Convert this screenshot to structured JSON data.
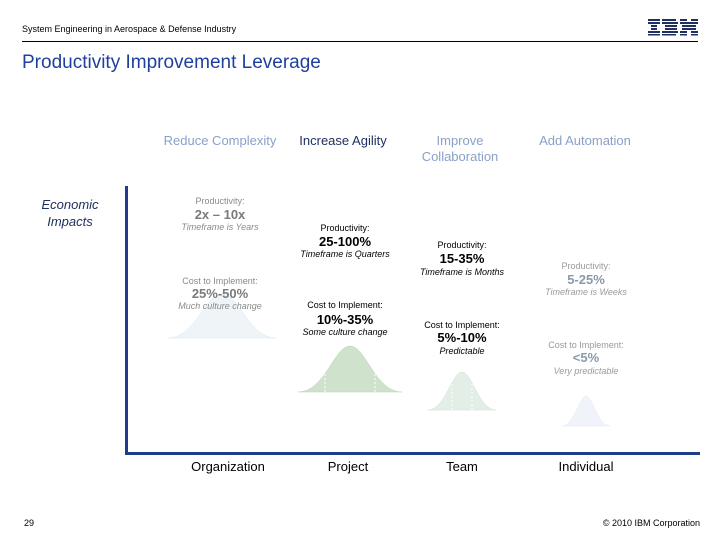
{
  "header": {
    "text": "System Engineering in Aerospace & Defense Industry",
    "title": "Productivity Improvement Leverage",
    "logo_text": "IBM"
  },
  "row_label": "Economic Impacts",
  "columns": [
    {
      "heading": "Reduce Complexity",
      "productivity_label": "Productivity:",
      "productivity_value": "2x – 10x",
      "productivity_timeframe": "Timeframe is Years",
      "cost_label": "Cost to Implement:",
      "cost_value": "25%-50%",
      "cost_note": "Much culture change",
      "bottom_label": "Organization"
    },
    {
      "heading": "Increase Agility",
      "productivity_label": "Productivity:",
      "productivity_value": "25-100%",
      "productivity_timeframe": "Timeframe is Quarters",
      "cost_label": "Cost to Implement:",
      "cost_value": "10%-35%",
      "cost_note": "Some culture change",
      "bottom_label": "Project"
    },
    {
      "heading": "Improve Collaboration",
      "productivity_label": "Productivity:",
      "productivity_value": "15-35%",
      "productivity_timeframe": "Timeframe is Months",
      "cost_label": "Cost to Implement:",
      "cost_value": "5%-10%",
      "cost_note": "Predictable",
      "bottom_label": "Team"
    },
    {
      "heading": "Add Automation",
      "productivity_label": "Productivity:",
      "productivity_value": "5-25%",
      "productivity_timeframe": "Timeframe is Weeks",
      "cost_label": "Cost to Implement:",
      "cost_value": "<5%",
      "cost_note": "Very predictable",
      "bottom_label": "Individual"
    }
  ],
  "colors": {
    "title": "#1f3fa0",
    "axis": "#1e3e8c",
    "curve_1": "#eef4f8",
    "curve_2": "#cfe3cc",
    "curve_3": "#e3efe6",
    "curve_4": "#f1f3fa"
  },
  "footer": {
    "page_number": "29",
    "copyright": "© 2010 IBM Corporation"
  }
}
